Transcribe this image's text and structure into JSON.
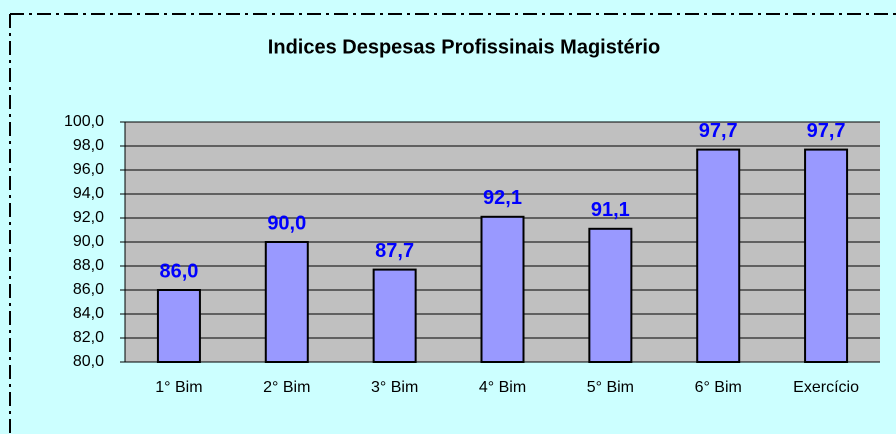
{
  "chart_data": {
    "type": "bar",
    "title": "Indices Despesas Profissinais Magistério",
    "categories": [
      "1° Bim",
      "2° Bim",
      "3° Bim",
      "4° Bim",
      "5° Bim",
      "6° Bim",
      "Exercício"
    ],
    "values": [
      86.0,
      90.0,
      87.7,
      92.1,
      91.1,
      97.7,
      97.7
    ],
    "value_labels": [
      "86,0",
      "90,0",
      "87,7",
      "92,1",
      "91,1",
      "97,7",
      "97,7"
    ],
    "color": "#9999ff",
    "ylim": [
      80,
      100
    ],
    "yticks": [
      {
        "value": 80,
        "label": "80,0"
      },
      {
        "value": 82,
        "label": "82,0"
      },
      {
        "value": 84,
        "label": "84,0"
      },
      {
        "value": 86,
        "label": "86,0"
      },
      {
        "value": 88,
        "label": "88,0"
      },
      {
        "value": 90,
        "label": "90,0"
      },
      {
        "value": 92,
        "label": "92,0"
      },
      {
        "value": 94,
        "label": "94,0"
      },
      {
        "value": 96,
        "label": "96,0"
      },
      {
        "value": 98,
        "label": "98,0"
      },
      {
        "value": 100,
        "label": "100,0"
      }
    ],
    "grid": true
  }
}
